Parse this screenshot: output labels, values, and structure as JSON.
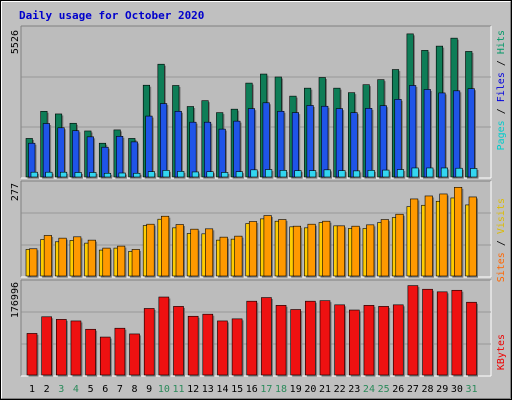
{
  "title": "Daily usage for October 2020",
  "colors": {
    "background": "#c0c0c0",
    "plot_bg": "#bcbcbc",
    "title": "#0000cc",
    "hits": "#0e7d57",
    "files": "#1f54e8",
    "pages": "#33d6f0",
    "visits": "#ffcc00",
    "sites": "#ff9900",
    "kbytes": "#ee1111",
    "weekend_day": "#2a8a5a",
    "weekday": "#000000"
  },
  "panels": {
    "hits": {
      "max_label": "5526",
      "legend": [
        "Pages",
        "Files",
        "Hits"
      ],
      "legend_colors": [
        "#00cccc",
        "#0000dd",
        "#009966"
      ]
    },
    "visits": {
      "max_label": "277",
      "legend": [
        "Sites",
        "Visits"
      ],
      "legend_colors": [
        "#ff6600",
        "#ddbb00"
      ]
    },
    "kbytes": {
      "max_label": "176996",
      "legend": [
        "KBytes"
      ],
      "legend_colors": [
        "#ee0000"
      ]
    }
  },
  "chart_data": {
    "type": "bar",
    "title": "Daily usage for October 2020",
    "categories": [
      "1",
      "2",
      "3",
      "4",
      "5",
      "6",
      "7",
      "8",
      "9",
      "10",
      "11",
      "12",
      "13",
      "14",
      "15",
      "16",
      "17",
      "18",
      "19",
      "20",
      "21",
      "22",
      "23",
      "24",
      "25",
      "26",
      "27",
      "28",
      "29",
      "30",
      "31"
    ],
    "weekend_days": [
      "3",
      "4",
      "10",
      "11",
      "17",
      "18",
      "24",
      "25",
      "31"
    ],
    "hits_chart": {
      "ymax": 5526,
      "series": [
        {
          "name": "Hits",
          "values": [
            1450,
            2470,
            2370,
            2020,
            1730,
            1270,
            1770,
            1450,
            3450,
            4240,
            3440,
            2650,
            2870,
            2420,
            2550,
            3530,
            3870,
            3760,
            3040,
            3340,
            3740,
            3340,
            3170,
            3470,
            3660,
            4040,
            5380,
            4760,
            4920,
            5220,
            4720
          ]
        },
        {
          "name": "Files",
          "values": [
            1270,
            2010,
            1850,
            1740,
            1510,
            1120,
            1530,
            1320,
            2290,
            2760,
            2470,
            2060,
            2060,
            1800,
            2100,
            2570,
            2790,
            2470,
            2420,
            2690,
            2660,
            2570,
            2420,
            2580,
            2680,
            2920,
            3440,
            3290,
            3160,
            3240,
            3320
          ]
        },
        {
          "name": "Pages",
          "values": [
            180,
            180,
            180,
            170,
            170,
            140,
            150,
            140,
            200,
            250,
            210,
            190,
            200,
            170,
            200,
            270,
            280,
            250,
            240,
            240,
            270,
            240,
            230,
            250,
            260,
            280,
            340,
            340,
            340,
            330,
            320
          ]
        }
      ]
    },
    "visits_chart": {
      "ymax": 277,
      "series": [
        {
          "name": "Visits",
          "values": [
            80,
            110,
            103,
            107,
            99,
            78,
            84,
            74,
            152,
            171,
            145,
            128,
            127,
            108,
            111,
            158,
            172,
            165,
            148,
            145,
            161,
            151,
            143,
            143,
            161,
            176,
            209,
            213,
            225,
            235,
            214
          ]
        },
        {
          "name": "Sites",
          "values": [
            82,
            122,
            114,
            118,
            108,
            84,
            90,
            80,
            156,
            180,
            155,
            141,
            142,
            117,
            120,
            164,
            182,
            170,
            150,
            156,
            165,
            151,
            150,
            154,
            170,
            186,
            232,
            241,
            247,
            267,
            238
          ]
        }
      ]
    },
    "kbytes_chart": {
      "ymax": 176996,
      "series": [
        {
          "name": "KBytes",
          "values": [
            80000,
            112000,
            107000,
            104000,
            88000,
            73000,
            90000,
            79000,
            128000,
            150000,
            132000,
            113000,
            117000,
            104000,
            108000,
            142000,
            149000,
            134000,
            126000,
            142000,
            143000,
            135000,
            125000,
            134000,
            132000,
            135000,
            172000,
            165000,
            160000,
            163000,
            140000
          ]
        }
      ]
    }
  }
}
